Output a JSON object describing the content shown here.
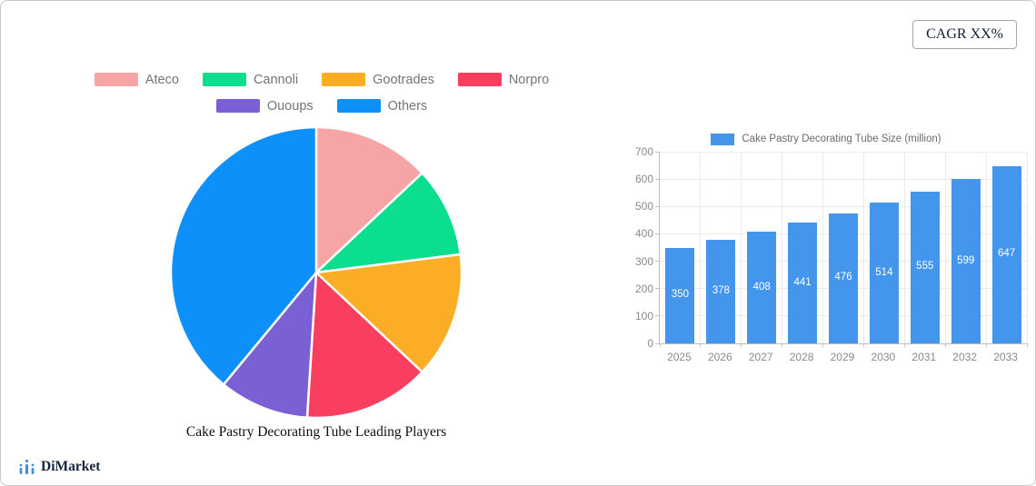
{
  "card": {
    "cagr_badge": "CAGR XX%"
  },
  "branding": {
    "logo_text": "DiMarket",
    "logo_icon_color": "#4390da"
  },
  "chart_data": [
    {
      "type": "pie",
      "title": "Cake Pastry Decorating Tube Leading Players",
      "legend_position": "top",
      "direction": "clockwise",
      "start_angle_deg": 0,
      "slices": [
        {
          "label": "Ateco",
          "value_pct": 13,
          "color": "#F7A4A6"
        },
        {
          "label": "Cannoli",
          "value_pct": 10,
          "color": "#0CDE90"
        },
        {
          "label": "Gootrades",
          "value_pct": 14,
          "color": "#FBAD26"
        },
        {
          "label": "Norpro",
          "value_pct": 14,
          "color": "#FA3E5F"
        },
        {
          "label": "Ououps",
          "value_pct": 10,
          "color": "#7B5FD4"
        },
        {
          "label": "Others",
          "value_pct": 39,
          "color": "#0D90FA"
        }
      ]
    },
    {
      "type": "bar",
      "legend": "Cake Pastry Decorating Tube Size (million)",
      "categories": [
        "2025",
        "2026",
        "2027",
        "2028",
        "2029",
        "2030",
        "2031",
        "2032",
        "2033"
      ],
      "values": [
        350,
        378,
        408,
        441,
        476,
        514,
        555,
        599,
        647
      ],
      "bar_color": "#4496EC",
      "value_label_color": "#FFFFFF",
      "ylim": [
        0,
        700
      ],
      "ytick_step": 100,
      "grid": true,
      "legend_position": "top"
    }
  ]
}
